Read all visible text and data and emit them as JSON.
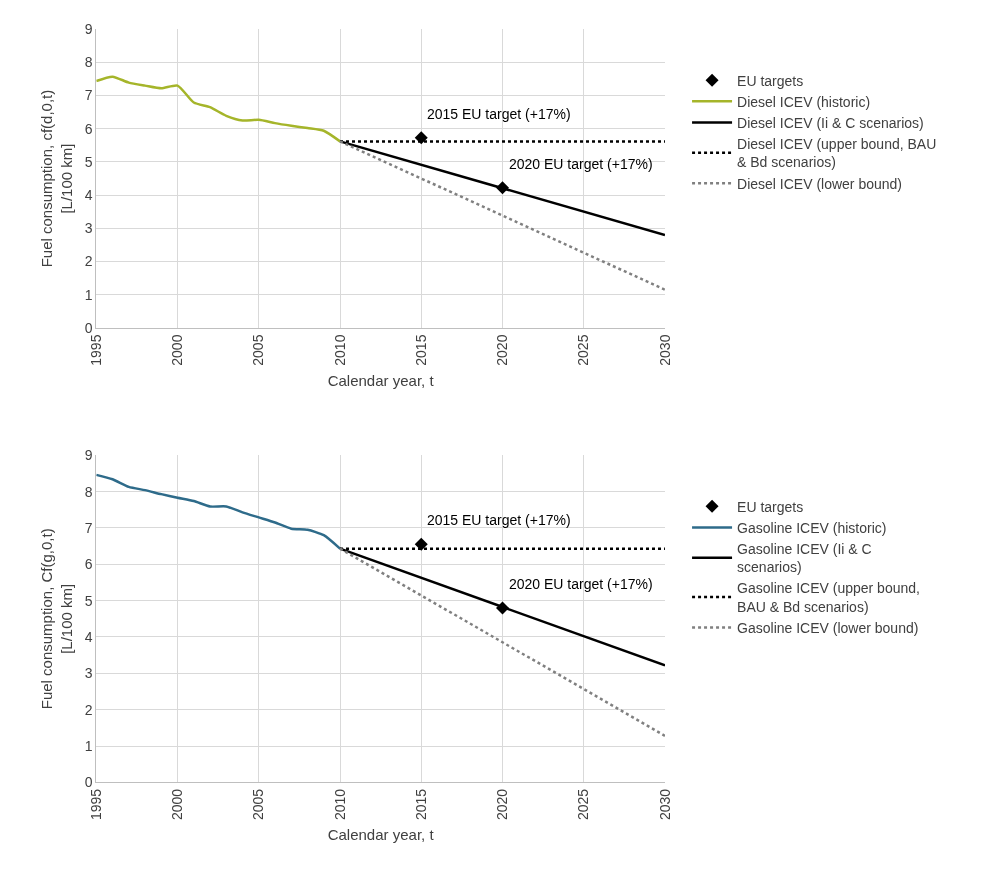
{
  "chart_data": [
    {
      "type": "line",
      "xlabel": "Calendar year, t",
      "ylabel": "Fuel consumption, cf(d,0,t) [L/100 km]",
      "xlim": [
        1995,
        2030
      ],
      "xticks": [
        1995,
        2000,
        2005,
        2010,
        2015,
        2020,
        2025,
        2030
      ],
      "ylim": [
        0,
        9
      ],
      "yticks": [
        0,
        1,
        2,
        3,
        4,
        5,
        6,
        7,
        8,
        9
      ],
      "grid": true,
      "legend": "right",
      "series": [
        {
          "name": "EU targets",
          "type": "scatter",
          "marker": "diamond",
          "color": "#000000",
          "x": [
            2015,
            2020
          ],
          "values": [
            5.73,
            4.22
          ]
        },
        {
          "name": "Diesel ICEV (historic)",
          "color": "#a5b52a",
          "line_style": "solid",
          "x": [
            1995,
            1996,
            1997,
            1998,
            1999,
            2000,
            2001,
            2002,
            2003,
            2004,
            2005,
            2006,
            2007,
            2008,
            2009,
            2010
          ],
          "values": [
            7.44,
            7.57,
            7.39,
            7.3,
            7.22,
            7.3,
            6.79,
            6.65,
            6.39,
            6.25,
            6.27,
            6.17,
            6.09,
            6.02,
            5.94,
            5.62
          ]
        },
        {
          "name": "Diesel ICEV (Ii & C scenarios)",
          "color": "#000000",
          "line_style": "solid",
          "x": [
            2010,
            2030
          ],
          "values": [
            5.62,
            2.8
          ]
        },
        {
          "name": "Diesel ICEV (upper bound, BAU & Bd scenarios)",
          "color": "#000000",
          "line_style": "dotted",
          "x": [
            2010,
            2030
          ],
          "values": [
            5.62,
            5.62
          ]
        },
        {
          "name": "Diesel ICEV (lower bound)",
          "color": "#808080",
          "line_style": "dotted",
          "x": [
            2010,
            2030
          ],
          "values": [
            5.62,
            1.15
          ]
        }
      ],
      "annotations": [
        "2015 EU target (+17%)",
        "2020 EU target (+17%)"
      ]
    },
    {
      "type": "line",
      "xlabel": "Calendar year, t",
      "ylabel": "Fuel consumption, Cf(g,0,t) [L/100 km]",
      "xlim": [
        1995,
        2030
      ],
      "xticks": [
        1995,
        2000,
        2005,
        2010,
        2015,
        2020,
        2025,
        2030
      ],
      "ylim": [
        0,
        9
      ],
      "yticks": [
        0,
        1,
        2,
        3,
        4,
        5,
        6,
        7,
        8,
        9
      ],
      "grid": true,
      "legend": "right",
      "series": [
        {
          "name": "EU targets",
          "type": "scatter",
          "marker": "diamond",
          "color": "#000000",
          "x": [
            2015,
            2020
          ],
          "values": [
            6.55,
            4.8
          ]
        },
        {
          "name": "Gasoline ICEV (historic)",
          "color": "#2e6b8a",
          "line_style": "solid",
          "x": [
            1995,
            1996,
            1997,
            1998,
            1999,
            2000,
            2001,
            2002,
            2003,
            2004,
            2005,
            2006,
            2007,
            2008,
            2009,
            2010
          ],
          "values": [
            8.46,
            8.34,
            8.13,
            8.04,
            7.93,
            7.83,
            7.74,
            7.59,
            7.59,
            7.43,
            7.29,
            7.15,
            6.98,
            6.95,
            6.8,
            6.43
          ]
        },
        {
          "name": "Gasoline ICEV (Ii & C scenarios)",
          "color": "#000000",
          "line_style": "solid",
          "x": [
            2010,
            2030
          ],
          "values": [
            6.43,
            3.22
          ]
        },
        {
          "name": "Gasoline ICEV (upper bound, BAU & Bd scenarios)",
          "color": "#000000",
          "line_style": "dotted",
          "x": [
            2010,
            2030
          ],
          "values": [
            6.43,
            6.43
          ]
        },
        {
          "name": "Gasoline ICEV (lower bound)",
          "color": "#808080",
          "line_style": "dotted",
          "x": [
            2010,
            2030
          ],
          "values": [
            6.43,
            1.28
          ]
        }
      ],
      "annotations": [
        "2015 EU target (+17%)",
        "2020 EU target (+17%)"
      ]
    }
  ]
}
